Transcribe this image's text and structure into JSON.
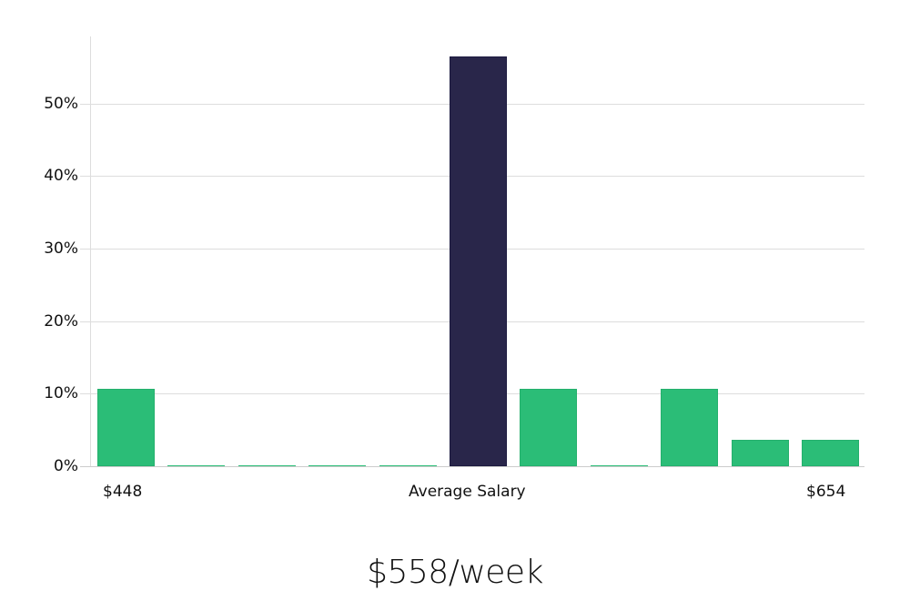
{
  "chart_data": {
    "type": "bar",
    "title": "",
    "xlabel": "",
    "ylabel": "",
    "ylim": [
      0,
      59
    ],
    "yticks": [
      "0%",
      "10%",
      "20%",
      "30%",
      "40%",
      "50%"
    ],
    "ytick_values": [
      0,
      10,
      20,
      30,
      40,
      50
    ],
    "grid": true,
    "categories": [
      "bin1",
      "bin2",
      "bin3",
      "bin4",
      "bin5",
      "bin6",
      "bin7",
      "bin8",
      "bin9",
      "bin10",
      "bin11"
    ],
    "values": [
      10.7,
      0,
      0,
      0,
      0,
      56.4,
      10.7,
      0,
      10.7,
      3.6,
      3.6
    ],
    "highlight_index": 5,
    "x_labels": {
      "left": "$448",
      "center": "Average Salary",
      "right": "$654"
    },
    "colors": {
      "default": "#2bbd77",
      "highlight": "#29264a",
      "grid": "#dddddd"
    }
  },
  "footer": {
    "value": "$558/week"
  }
}
